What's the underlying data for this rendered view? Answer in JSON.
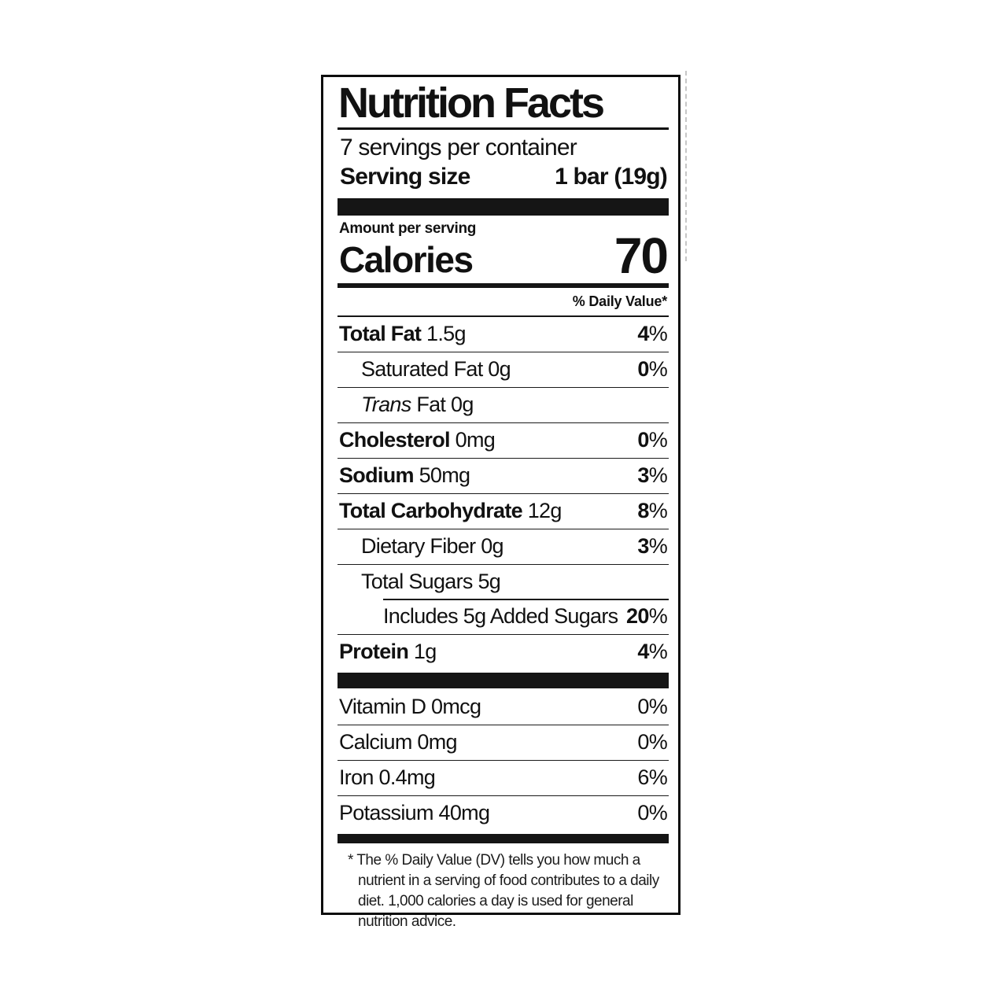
{
  "label": {
    "title": "Nutrition Facts",
    "servings_per_container": "7 servings per container",
    "serving_size_label": "Serving size",
    "serving_size_value": "1 bar (19g)",
    "amount_per_serving": "Amount per serving",
    "calories_label": "Calories",
    "calories_value": "70",
    "daily_value_header": "% Daily Value*",
    "nutrients": [
      {
        "label_bold": "Total Fat",
        "label_regular": " 1.5g",
        "value_bold": "4",
        "value_regular": "%"
      },
      {
        "label_regular": "Saturated Fat 0g",
        "value_bold": "0",
        "value_regular": "%"
      },
      {
        "label_italic": "Trans",
        "label_regular": " Fat 0g"
      },
      {
        "label_bold": "Cholesterol",
        "label_regular": " 0mg",
        "value_bold": "0",
        "value_regular": "%"
      },
      {
        "label_bold": "Sodium",
        "label_regular": " 50mg",
        "value_bold": "3",
        "value_regular": "%"
      },
      {
        "label_bold": "Total Carbohydrate",
        "label_regular": " 12g",
        "value_bold": "8",
        "value_regular": "%"
      },
      {
        "label_regular": "Dietary Fiber 0g",
        "value_bold": "3",
        "value_regular": "%"
      },
      {
        "label_regular": "Total Sugars 5g"
      },
      {
        "label_regular": "Includes 5g Added Sugars",
        "value_bold": "20",
        "value_regular": "%"
      },
      {
        "label_bold": "Protein",
        "label_regular": " 1g",
        "value_bold": "4",
        "value_regular": "%"
      }
    ],
    "micronutrients": [
      {
        "label": "Vitamin D 0mcg",
        "value": "0%"
      },
      {
        "label": "Calcium 0mg",
        "value": "0%"
      },
      {
        "label": "Iron 0.4mg",
        "value": "6%"
      },
      {
        "label": "Potassium 40mg",
        "value": "0%"
      }
    ],
    "footnote": "* The % Daily Value (DV) tells you how much a nutrient in a serving of food contributes to a daily diet. 1,000 calories a day is used for general nutrition advice."
  },
  "colors": {
    "ink": "#111111",
    "background": "#ffffff",
    "cut_line": "#c6c6c6"
  }
}
